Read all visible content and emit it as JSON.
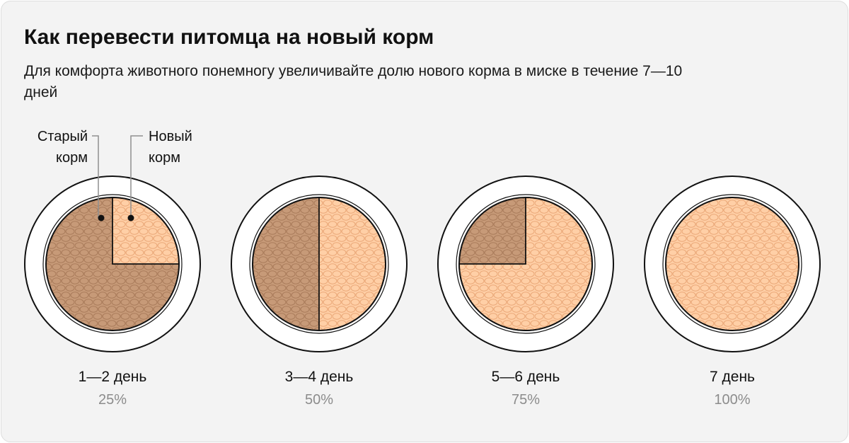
{
  "title": "Как перевести питомца на новый корм",
  "subtitle": "Для комфорта животного понемногу увеличивайте долю нового корма в миске в течение 7—10 дней",
  "legend": {
    "old_food": "Старый\nкорм",
    "new_food": "Новый\nкорм"
  },
  "colors": {
    "old_food": "#c79a78",
    "new_food": "#ffcfa6",
    "bowl_rim": "#ffffff",
    "outline": "#111111"
  },
  "stages": [
    {
      "day": "1—2 день",
      "percent": "25%",
      "new_share": 0.25
    },
    {
      "day": "3—4 день",
      "percent": "50%",
      "new_share": 0.5
    },
    {
      "day": "5—6 день",
      "percent": "75%",
      "new_share": 0.75
    },
    {
      "day": "7 день",
      "percent": "100%",
      "new_share": 1.0
    }
  ]
}
